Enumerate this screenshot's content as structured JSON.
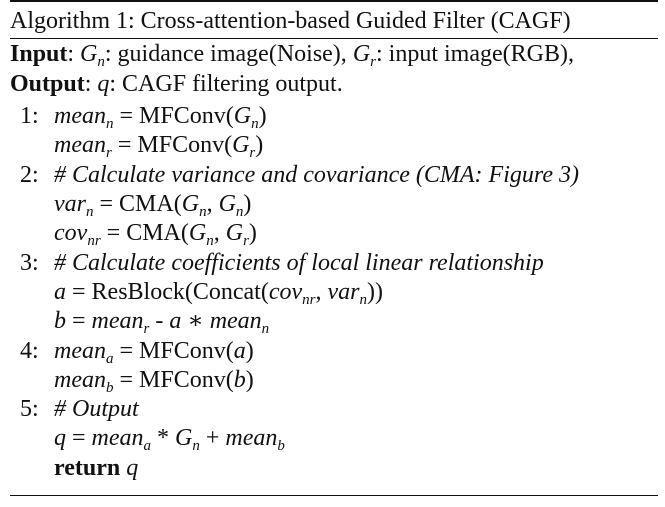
{
  "algorithm": {
    "title": "Algorithm 1: Cross-attention-based Guided Filter (CAGF)",
    "input_label": "Input",
    "input_text_1": ": ",
    "input_gn": "G",
    "input_gn_sub": "n",
    "input_text_2": ": guidance image(Noise), ",
    "input_gr": "G",
    "input_gr_sub": "r",
    "input_text_3": ": input image(RGB),",
    "output_label": "Output",
    "output_text_1": ": ",
    "output_q": "q",
    "output_text_2": ": CAGF filtering output."
  },
  "steps": [
    {
      "num": "1:",
      "lhs": "mean",
      "lhs_sub": "n",
      "op": " = ",
      "fn": "MFConv(",
      "arg": "G",
      "arg_sub": "n",
      "close": ")"
    },
    {
      "num": "",
      "lhs": "mean",
      "lhs_sub": "r",
      "op": " = ",
      "fn": "MFConv(",
      "arg": "G",
      "arg_sub": "r",
      "close": ")"
    },
    {
      "num": "2:",
      "comment": "# Calculate variance and covariance (CMA: Figure 3)"
    },
    {
      "num": "",
      "lhs": "var",
      "lhs_sub": "n",
      "op": " = ",
      "fn": "CMA(",
      "arg": "G",
      "arg_sub": "n",
      "sep": ", ",
      "arg2": "G",
      "arg2_sub": "n",
      "close": ")"
    },
    {
      "num": "",
      "lhs": "cov",
      "lhs_sub": "nr",
      "op": " = ",
      "fn": "CMA(",
      "arg": "G",
      "arg_sub": "n",
      "sep": ", ",
      "arg2": "G",
      "arg2_sub": "r",
      "close": ")"
    },
    {
      "num": "3:",
      "comment": "# Calculate coefficients of local linear relationship"
    },
    {
      "num": "",
      "lhs": "a",
      "op": " = ",
      "fn": "ResBlock(Concat(",
      "arg": "cov",
      "arg_sub": "nr",
      "sep": ", ",
      "arg2": "var",
      "arg2_sub": "n",
      "close": "))"
    },
    {
      "num": "",
      "lhs": "b",
      "op": " = ",
      "term1": "mean",
      "term1_sub": "r",
      "minus": " - ",
      "term2": "a",
      "times": " ∗ ",
      "term3": "mean",
      "term3_sub": "n"
    },
    {
      "num": "4:",
      "lhs": "mean",
      "lhs_sub": "a",
      "op": " = ",
      "fn": "MFConv(",
      "arg": "a",
      "close": ")"
    },
    {
      "num": "",
      "lhs": "mean",
      "lhs_sub": "b",
      "op": " = ",
      "fn": "MFConv(",
      "arg": "b",
      "close": ")"
    },
    {
      "num": "5:",
      "comment": "# Output"
    },
    {
      "num": "",
      "lhs": "q",
      "op": " = ",
      "term1": "mean",
      "term1_sub": "a",
      "times": " * ",
      "term2": "G",
      "term2_sub": "n",
      "plus": " + ",
      "term3": "mean",
      "term3_sub": "b"
    },
    {
      "num": "",
      "keyword": "return",
      "ret": "q"
    }
  ]
}
